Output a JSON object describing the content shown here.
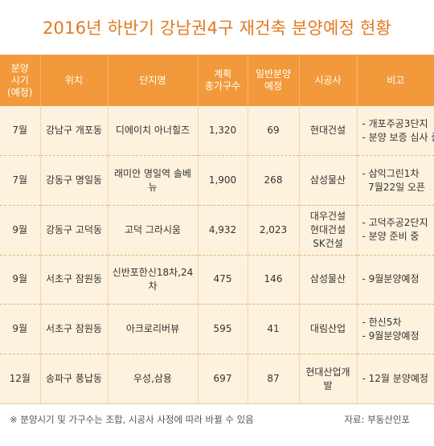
{
  "title": "2016년 하반기 강남권4구 재건축 분양예정 현황",
  "headers": [
    "분양\n시기\n(예정)",
    "위치",
    "단지명",
    "계획\n총가구수",
    "일반분양\n예정",
    "시공사",
    "비고"
  ],
  "rows": [
    {
      "period": "7월",
      "location": "강남구 개포동",
      "complex": "디에이치 아너힐즈",
      "total": "1,320",
      "general": "69",
      "builder": "현대건설",
      "notes": [
        "- 개포주공3단지",
        "- 분양 보증 심사 중"
      ]
    },
    {
      "period": "7월",
      "location": "강동구 명일동",
      "complex": "래미안 명일역 솔베뉴",
      "total": "1,900",
      "general": "268",
      "builder": "삼성물산",
      "notes": [
        "- 삼익그린1차",
        "  7월22일 오픈"
      ]
    },
    {
      "period": "9월",
      "location": "강동구 고덕동",
      "complex": "고덕 그라시움",
      "total": "4,932",
      "general": "2,023",
      "builder": "대우건설\n현대건설\nSK건설",
      "notes": [
        "- 고덕주공2단지",
        "- 분양 준비 중"
      ]
    },
    {
      "period": "9월",
      "location": "서초구 잠원동",
      "complex": "신반포한신18차,24차",
      "total": "475",
      "general": "146",
      "builder": "삼성물산",
      "notes": [
        "- 9월분양예정"
      ]
    },
    {
      "period": "9월",
      "location": "서초구 잠원동",
      "complex": "아크로리버뷰",
      "total": "595",
      "general": "41",
      "builder": "대림산업",
      "notes": [
        "- 한신5차",
        "- 9월분양예정"
      ]
    },
    {
      "period": "12월",
      "location": "송파구 풍납동",
      "complex": "우성,삼용",
      "total": "697",
      "general": "87",
      "builder": "현대산업개발",
      "notes": [
        "- 12월 분양예정"
      ]
    }
  ],
  "footnote": "※ 분양시기 및 가구수는 조합, 시공사 사정에 따라 바뀔 수 있음",
  "source": "자료: 부동산인포",
  "colors": {
    "accent": "#f29a3b",
    "title": "#e07a1f",
    "body_bg": "#fdf2dd"
  }
}
